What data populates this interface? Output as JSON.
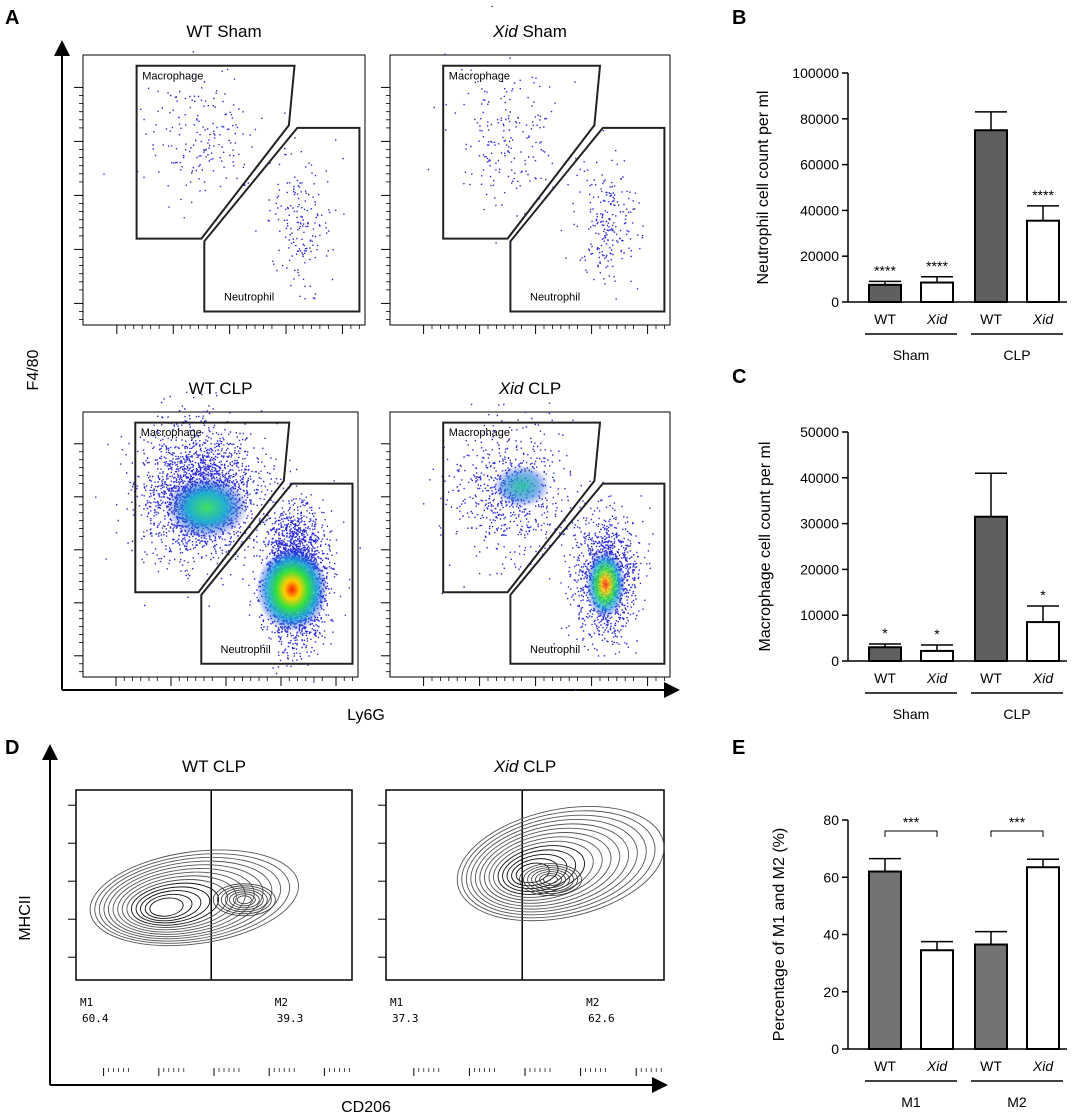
{
  "panel_labels": [
    "A",
    "B",
    "C",
    "D",
    "E"
  ],
  "colors": {
    "wt_bar": "#5f5f5f",
    "xid_bar": "#ffffff",
    "e_wt_bar": "#737373",
    "dot": "#2b2bdc"
  },
  "panel_a": {
    "y_label": "F4/80",
    "x_label": "Ly6G",
    "plots": [
      {
        "prefix": "WT",
        "suffix": " Sham",
        "italic": false,
        "gate_macrophage": "Macrophage",
        "gate_neutrophil": "Neutrophil"
      },
      {
        "prefix": "Xid",
        "suffix": " Sham",
        "italic": true,
        "gate_macrophage": "Macrophage",
        "gate_neutrophil": "Neutrophil"
      },
      {
        "prefix": "WT",
        "suffix": " CLP",
        "italic": false,
        "gate_macrophage": "Macrophage",
        "gate_neutrophil": "Neutrophil"
      },
      {
        "prefix": "Xid",
        "suffix": " CLP",
        "italic": true,
        "gate_macrophage": "Macrophage",
        "gate_neutrophil": "Neutrophil"
      }
    ]
  },
  "panel_d": {
    "y_label": "MHCII",
    "x_label": "CD206",
    "plots": [
      {
        "prefix": "WT",
        "suffix": " CLP",
        "italic": false,
        "m1_label": "M1",
        "m1_value": "60.4",
        "m2_label": "M2",
        "m2_value": "39.3"
      },
      {
        "prefix": "Xid",
        "suffix": " CLP",
        "italic": true,
        "m1_label": "M1",
        "m1_value": "37.3",
        "m2_label": "M2",
        "m2_value": "62.6"
      }
    ]
  },
  "chart_data": [
    {
      "id": "B",
      "type": "bar",
      "ylabel": "Neutrophil cell count per ml",
      "ylim": [
        0,
        100000
      ],
      "yticks": [
        "0",
        "20000",
        "40000",
        "60000",
        "80000",
        "100000"
      ],
      "categories": [
        "WT",
        "Xid",
        "WT",
        "Xid"
      ],
      "groups": [
        "Sham",
        "CLP"
      ],
      "values": [
        7500,
        8500,
        75000,
        35500
      ],
      "errors": [
        1500,
        2500,
        8000,
        6500
      ],
      "significance": [
        "****",
        "****",
        "",
        "****"
      ]
    },
    {
      "id": "C",
      "type": "bar",
      "ylabel": "Macrophage cell count per ml",
      "ylim": [
        0,
        50000
      ],
      "yticks": [
        "0",
        "10000",
        "20000",
        "30000",
        "40000",
        "50000"
      ],
      "categories": [
        "WT",
        "Xid",
        "WT",
        "Xid"
      ],
      "groups": [
        "Sham",
        "CLP"
      ],
      "values": [
        3000,
        2200,
        31500,
        8500
      ],
      "errors": [
        700,
        1300,
        9500,
        3500
      ],
      "significance": [
        "*",
        "*",
        "",
        "*"
      ]
    },
    {
      "id": "E",
      "type": "bar",
      "ylabel": "Percentage of M1 and M2 (%)",
      "ylim": [
        0,
        80
      ],
      "yticks": [
        "0",
        "20",
        "40",
        "60",
        "80"
      ],
      "categories": [
        "WT",
        "Xid",
        "WT",
        "Xid"
      ],
      "groups": [
        "M1",
        "M2"
      ],
      "values": [
        62,
        34.5,
        36.5,
        63.5
      ],
      "errors": [
        4.5,
        3,
        4.5,
        2.8
      ],
      "brackets": [
        {
          "from": 0,
          "to": 1,
          "label": "***"
        },
        {
          "from": 2,
          "to": 3,
          "label": "***"
        }
      ]
    }
  ]
}
